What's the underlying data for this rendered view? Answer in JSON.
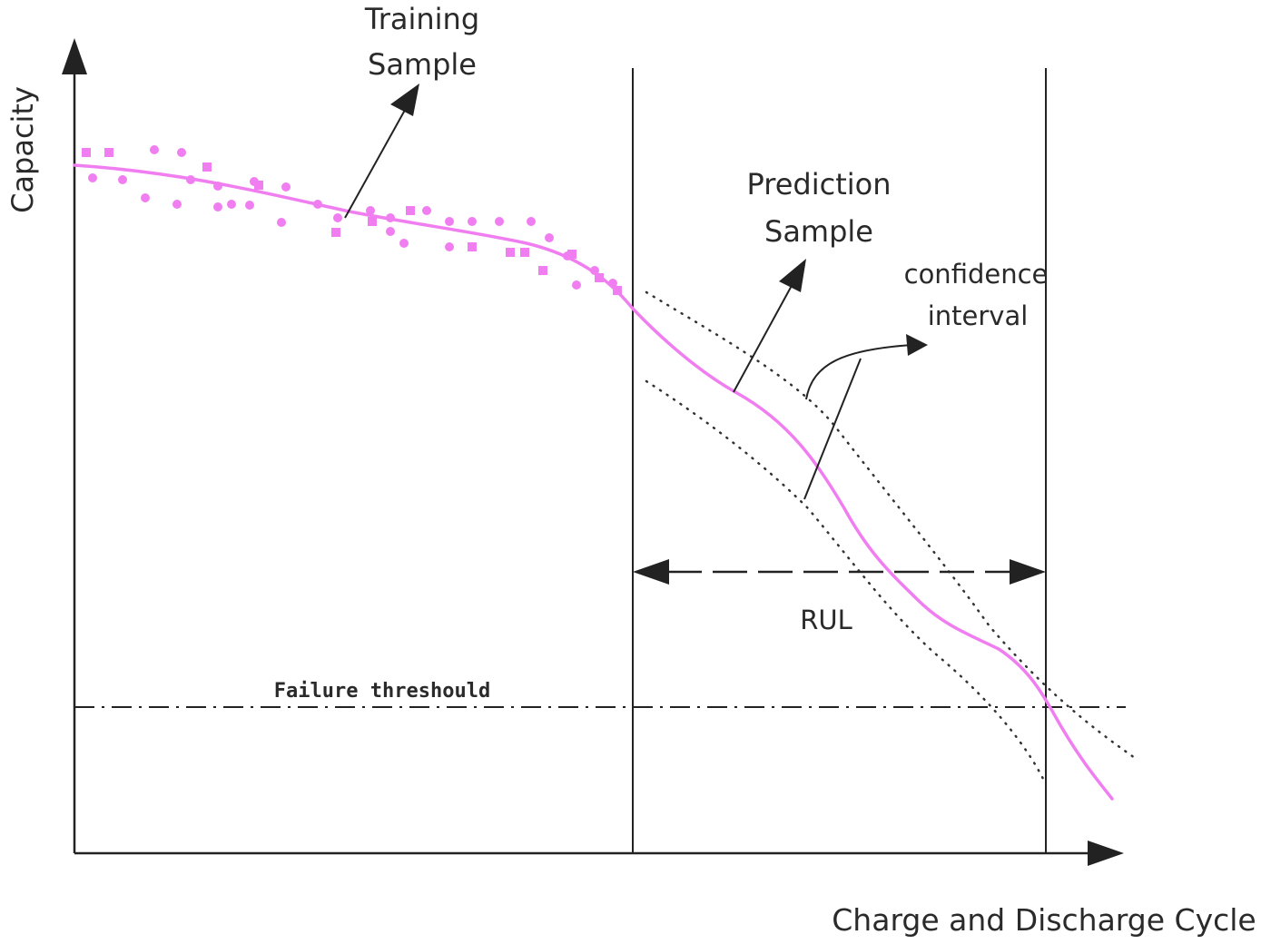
{
  "axes": {
    "y_label": "Capacity",
    "x_label": "Charge and Discharge Cycle"
  },
  "annotations": {
    "training_sample": [
      "Training",
      "Sample"
    ],
    "prediction_sample": [
      "Prediction",
      "Sample"
    ],
    "confidence_interval": [
      "confidence",
      "interval"
    ],
    "rul": "RUL",
    "failure_threshold": "Failure threshould"
  },
  "colors": {
    "curve": "#f07ef0",
    "samples": "#f07ef0",
    "lines": "#222222"
  }
}
